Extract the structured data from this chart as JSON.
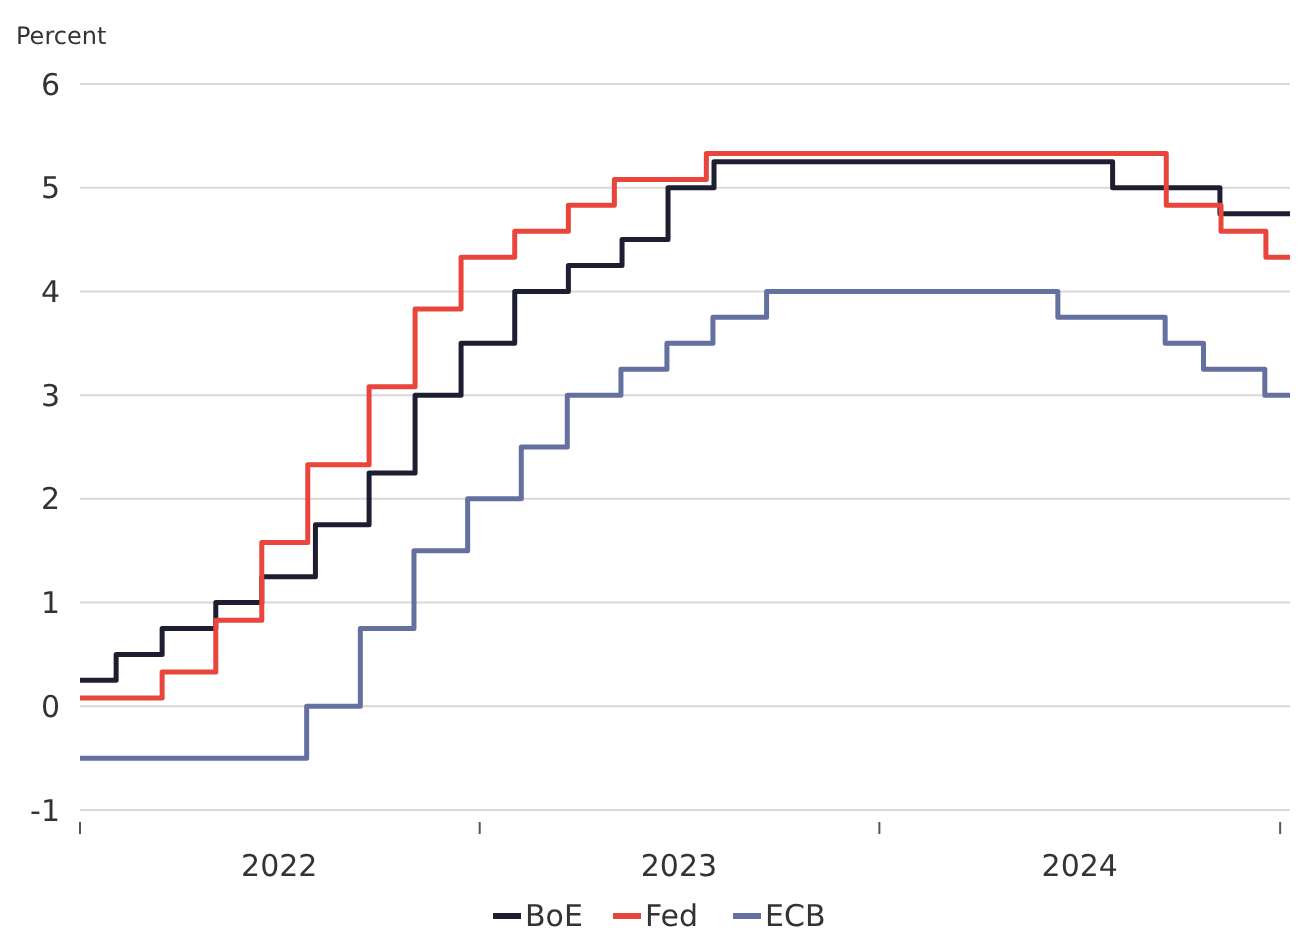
{
  "chart_data": {
    "type": "step",
    "ylabel": "Percent",
    "xlim": [
      "2022-01-01",
      "2025-01-10"
    ],
    "ylim": [
      -1,
      6
    ],
    "yticks": [
      -1,
      0,
      1,
      2,
      3,
      4,
      5,
      6
    ],
    "xticks": [
      {
        "value": "2022-01-01",
        "label": null
      },
      {
        "value": "2022-07-02",
        "label": "2022"
      },
      {
        "value": "2023-01-01",
        "label": null
      },
      {
        "value": "2023-07-02",
        "label": "2023"
      },
      {
        "value": "2024-01-01",
        "label": null
      },
      {
        "value": "2024-07-02",
        "label": "2024"
      },
      {
        "value": "2025-01-01",
        "label": null
      }
    ],
    "grid": "y",
    "legend": "bottom",
    "line_style": "solid",
    "marker": "none",
    "series": [
      {
        "name": "BoE",
        "color": "#1e1e32",
        "x": [
          "2022-01-01",
          "2022-02-03",
          "2022-03-17",
          "2022-05-05",
          "2022-06-16",
          "2022-08-04",
          "2022-09-22",
          "2022-11-03",
          "2022-12-15",
          "2023-02-02",
          "2023-03-23",
          "2023-05-11",
          "2023-06-22",
          "2023-08-03",
          "2024-08-01",
          "2024-11-07",
          "2025-01-10"
        ],
        "values": [
          0.25,
          0.5,
          0.75,
          1,
          1.25,
          1.75,
          2.25,
          3,
          3.5,
          4,
          4.25,
          4.5,
          5,
          5.25,
          5,
          4.75,
          4.75
        ]
      },
      {
        "name": "Fed",
        "color": "#e8463c",
        "x": [
          "2022-01-01",
          "2022-03-17",
          "2022-05-05",
          "2022-06-16",
          "2022-07-28",
          "2022-09-22",
          "2022-11-03",
          "2022-12-15",
          "2023-02-02",
          "2023-03-23",
          "2023-05-04",
          "2023-07-27",
          "2024-09-19",
          "2024-11-08",
          "2024-12-19",
          "2025-01-10"
        ],
        "values": [
          0.08,
          0.33,
          0.83,
          1.58,
          2.33,
          3.08,
          3.83,
          4.33,
          4.58,
          4.83,
          5.08,
          5.33,
          4.83,
          4.58,
          4.33,
          4.33
        ]
      },
      {
        "name": "ECB",
        "color": "#6470a0",
        "x": [
          "2022-01-01",
          "2022-07-27",
          "2022-09-14",
          "2022-11-02",
          "2022-12-21",
          "2023-02-08",
          "2023-03-22",
          "2023-05-10",
          "2023-06-21",
          "2023-08-02",
          "2023-09-20",
          "2024-06-12",
          "2024-09-18",
          "2024-10-23",
          "2024-12-18",
          "2025-01-10"
        ],
        "values": [
          -0.5,
          0,
          0.75,
          1.5,
          2,
          2.5,
          3,
          3.25,
          3.5,
          3.75,
          4,
          3.75,
          3.5,
          3.25,
          3,
          3
        ]
      }
    ]
  }
}
